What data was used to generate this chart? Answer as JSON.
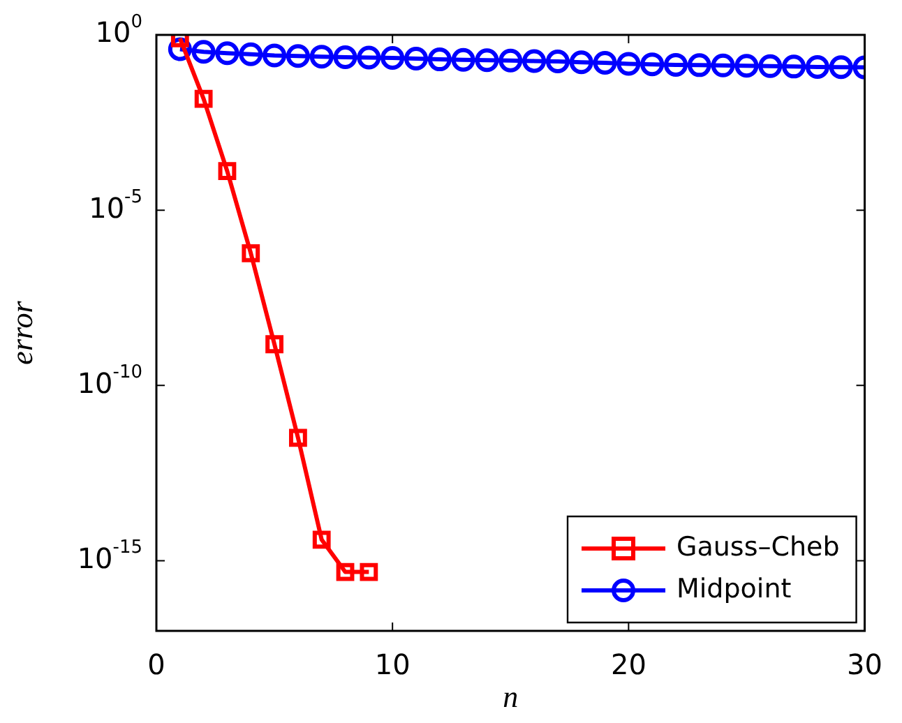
{
  "chart_data": {
    "type": "line",
    "xlabel": "n",
    "ylabel": "error",
    "log": "y",
    "xlim": [
      0,
      30
    ],
    "xticks": [
      0,
      10,
      20,
      30
    ],
    "ylim": [
      1e-17,
      1
    ],
    "yticks": [
      {
        "value": 1,
        "label": "10$^{0}$"
      },
      {
        "value": 1e-05,
        "label": "10$^{-5}$"
      },
      {
        "value": 1e-10,
        "label": "10$^{-10}$"
      },
      {
        "value": 1e-15,
        "label": "10$^{-15}$"
      }
    ],
    "grid": false,
    "legend": "bottom right",
    "line_style": "solid",
    "series": [
      {
        "name": "Gauss–Cheb",
        "color": "#ff0000",
        "marker": "square",
        "x": [
          1,
          2,
          3,
          4,
          5,
          6,
          7,
          8,
          9
        ],
        "values": [
          0.8,
          0.015,
          0.00013,
          5.9e-07,
          1.5e-09,
          3.2e-12,
          4e-15,
          4.8e-16,
          4.8e-16
        ]
      },
      {
        "name": "Midpoint",
        "color": "#0000ff",
        "marker": "circle",
        "x": [
          1,
          2,
          3,
          4,
          5,
          6,
          7,
          8,
          9,
          10,
          11,
          12,
          13,
          14,
          15,
          16,
          17,
          18,
          19,
          20,
          21,
          22,
          23,
          24,
          25,
          26,
          27,
          28,
          29,
          30
        ],
        "values": [
          0.39,
          0.33,
          0.3,
          0.28,
          0.26,
          0.25,
          0.24,
          0.23,
          0.225,
          0.22,
          0.21,
          0.2,
          0.195,
          0.19,
          0.185,
          0.18,
          0.175,
          0.165,
          0.16,
          0.15,
          0.145,
          0.14,
          0.137,
          0.134,
          0.131,
          0.128,
          0.125,
          0.122,
          0.12,
          0.118
        ]
      }
    ]
  }
}
